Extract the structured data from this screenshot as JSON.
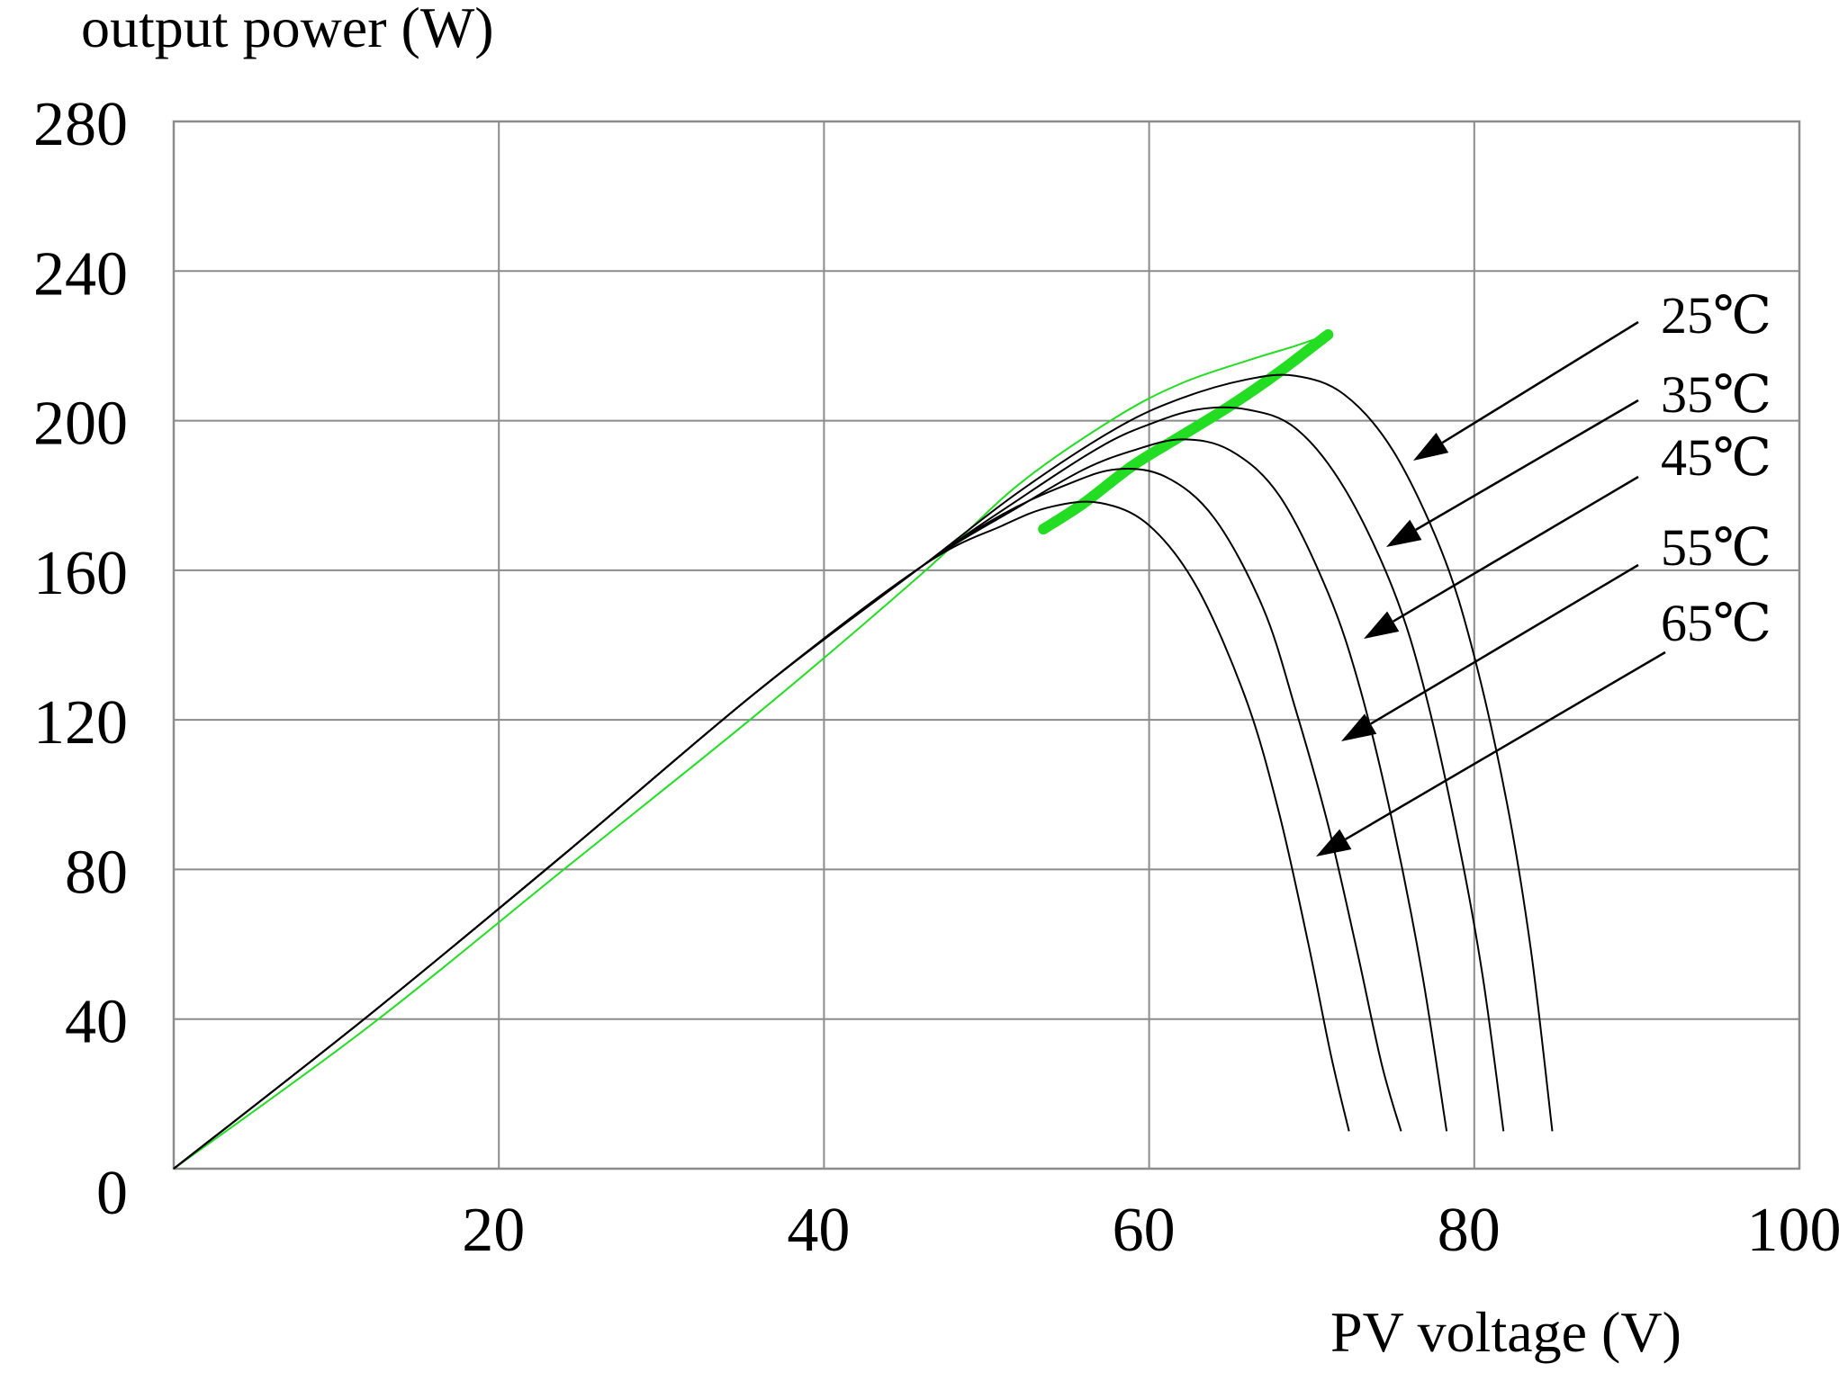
{
  "chart_data": {
    "type": "line",
    "title": "",
    "xlabel": "PV voltage (V)",
    "ylabel": "output power (W)",
    "xlim": [
      0,
      100
    ],
    "ylim": [
      0,
      280
    ],
    "x_ticks": [
      20,
      40,
      60,
      80,
      100
    ],
    "y_ticks": [
      0,
      40,
      80,
      120,
      160,
      200,
      240,
      280
    ],
    "grid": true,
    "series": [
      {
        "name": "25℃",
        "x": [
          0,
          12,
          24,
          36,
          46,
          52,
          58,
          62,
          66,
          69,
          72,
          75,
          78,
          80,
          82,
          83.5,
          84.8
        ],
        "y": [
          0,
          41,
          84,
          128,
          161,
          181,
          198,
          206,
          211,
          212,
          207,
          192,
          165,
          137,
          98,
          58,
          10
        ]
      },
      {
        "name": "35℃",
        "x": [
          0,
          12,
          24,
          36,
          46,
          52,
          57,
          60,
          63,
          66,
          69,
          72,
          75,
          77,
          79,
          80.5,
          81.8
        ],
        "y": [
          0,
          41,
          84,
          128,
          161,
          179,
          193,
          199,
          203,
          203,
          198,
          182,
          155,
          127,
          88,
          52,
          10
        ]
      },
      {
        "name": "45℃",
        "x": [
          0,
          12,
          24,
          36,
          46,
          52,
          56,
          59,
          62,
          65,
          68,
          71,
          73,
          75,
          76.8,
          78.3
        ],
        "y": [
          0,
          41,
          84,
          128,
          161,
          177,
          187,
          192,
          195,
          192,
          180,
          154,
          128,
          92,
          52,
          10
        ]
      },
      {
        "name": "55℃",
        "x": [
          0,
          12,
          24,
          36,
          46,
          51,
          55,
          58,
          61,
          64,
          67,
          69,
          71,
          72.8,
          74.3,
          75.5
        ],
        "y": [
          0,
          41,
          84,
          128,
          161,
          175,
          183,
          187,
          185,
          174,
          150,
          123,
          92,
          58,
          28,
          10
        ]
      },
      {
        "name": "65℃",
        "x": [
          0,
          12,
          24,
          36,
          46,
          51,
          54,
          57,
          60,
          63,
          66,
          68,
          69.8,
          71.2,
          72.3
        ],
        "y": [
          0,
          41,
          84,
          128,
          161,
          172,
          177,
          178,
          172,
          155,
          125,
          95,
          60,
          30,
          10
        ]
      }
    ],
    "overlays": [
      {
        "x": [
          0,
          12,
          24,
          36,
          46,
          52,
          58,
          62,
          66,
          69,
          71
        ],
        "y": [
          0,
          38,
          80,
          122,
          159,
          183,
          201,
          210,
          216,
          220,
          223
        ]
      },
      {
        "x": [
          53.5,
          56,
          59,
          62,
          65,
          68,
          71
        ],
        "y": [
          171,
          178,
          188,
          196,
          204,
          213,
          223
        ]
      }
    ]
  }
}
